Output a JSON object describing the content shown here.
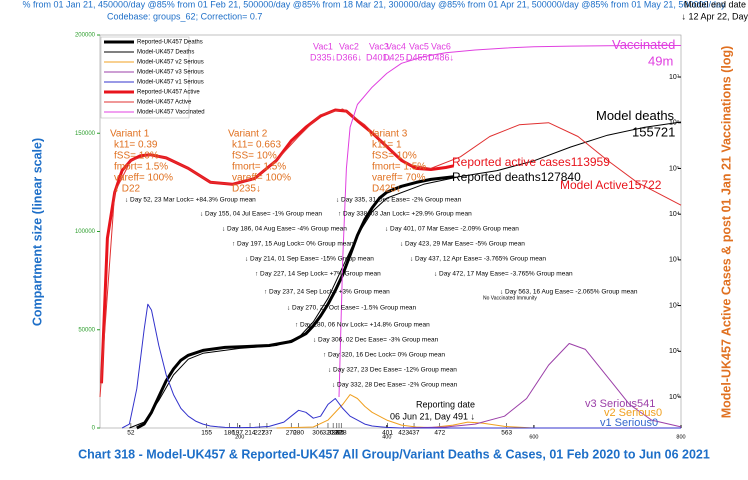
{
  "chart_data": {
    "type": "line",
    "subtitle": "% from 01 Jan 21, 450000/day @85% from 01 Feb 21, 500000/day @85% from 18 Mar 21, 300000/day @85% from 01 Apr 21, 500000/day @85% from 01 May 21, 500000/day",
    "codebase": "Codebase: groups_62; Correction= 0.7",
    "end_date": [
      "Model end date",
      "↓ 12 Apr 22, Day"
    ],
    "title": "Chart 318 - Model-UK457 & Reported-UK457 All Group/Variant Deaths & Cases, 01 Feb 2020 to Jun 06 2021",
    "ylabel": "Compartment size (linear scale)",
    "y2label": "Model-UK457 Active Cases & post 01 Jan 21 Vaccinations (log)",
    "xlim": [
      10,
      800
    ],
    "xticks": [
      200,
      400,
      600,
      800
    ],
    "ylim": [
      0,
      200000
    ],
    "yticks": [
      0,
      50000,
      100000,
      150000,
      200000
    ],
    "y2lim": [
      0.21,
      83000000
    ],
    "y2scale": "log",
    "y2ticks": [
      {
        "value": 1,
        "label": "10⁰"
      },
      {
        "value": 10,
        "label": "10¹"
      },
      {
        "value": 100,
        "label": "10²"
      },
      {
        "value": 1000,
        "label": "10³"
      },
      {
        "value": 10000,
        "label": "10⁴"
      },
      {
        "value": 100000,
        "label": "10⁵"
      },
      {
        "value": 1000000,
        "label": "10⁶"
      },
      {
        "value": 10000000,
        "label": "10⁷"
      }
    ],
    "legend": "upper left",
    "event_days": [
      52,
      155,
      186,
      197,
      214,
      227,
      237,
      270,
      280,
      306,
      320,
      327,
      332,
      335,
      338,
      401,
      423,
      437,
      472,
      563
    ],
    "series": [
      {
        "name": "Reported-UK457 Deaths",
        "color": "#000000",
        "line_width": 3,
        "axis": "y",
        "end_label": "Reported deaths",
        "x": [
          60,
          70,
          80,
          90,
          100,
          110,
          120,
          130,
          150,
          180,
          210,
          240,
          270,
          290,
          300,
          310,
          320,
          330,
          340,
          350,
          360,
          370,
          380,
          390,
          400,
          420,
          440,
          460,
          491
        ],
        "values": [
          0,
          2000,
          8000,
          16000,
          24000,
          30000,
          34500,
          37000,
          39500,
          41000,
          41500,
          42000,
          44000,
          48000,
          52000,
          57000,
          63000,
          70000,
          78000,
          88000,
          98000,
          106000,
          112000,
          117000,
          120000,
          123000,
          125000,
          126500,
          127840
        ]
      },
      {
        "name": "Model-UK457 Deaths",
        "color": "#000000",
        "line_width": 1,
        "axis": "y",
        "end_label": "Model deaths",
        "x": [
          50,
          70,
          90,
          110,
          130,
          150,
          200,
          250,
          280,
          300,
          320,
          340,
          360,
          380,
          400,
          450,
          500,
          550,
          600,
          650,
          700,
          750,
          800
        ],
        "values": [
          0,
          3000,
          14000,
          27000,
          35000,
          38000,
          40500,
          42000,
          46000,
          54000,
          66000,
          82000,
          98000,
          110000,
          117000,
          124000,
          128000,
          131000,
          136000,
          143000,
          149000,
          153000,
          155721
        ]
      },
      {
        "name": "Model-UK457 v2 Serious",
        "color": "#f0a020",
        "line_width": 1,
        "axis": "y",
        "end_label": "v2 Serious",
        "x": [
          250,
          300,
          320,
          340,
          350,
          360,
          370,
          380,
          400,
          420,
          440,
          460,
          490,
          510,
          530,
          560,
          600,
          700,
          800
        ],
        "values": [
          0,
          500,
          4000,
          12000,
          17000,
          15000,
          11000,
          8000,
          4000,
          1500,
          500,
          200,
          1500,
          3000,
          2500,
          800,
          0,
          0,
          0
        ]
      },
      {
        "name": "Model-UK457 v3 Serious",
        "color": "#9b3fa8",
        "line_width": 1,
        "axis": "y",
        "end_label": "v3 Serious",
        "x": [
          420,
          480,
          520,
          560,
          590,
          620,
          648,
          670,
          700,
          730,
          760,
          800
        ],
        "values": [
          0,
          500,
          2000,
          6000,
          15000,
          32000,
          43000,
          40000,
          26000,
          12000,
          4000,
          541
        ]
      },
      {
        "name": "Model-UK457 v1 Serious",
        "color": "#3333cc",
        "line_width": 1,
        "axis": "y",
        "end_label": "v1 Serious",
        "x": [
          40,
          50,
          60,
          70,
          75,
          80,
          90,
          100,
          110,
          120,
          130,
          140,
          150,
          160,
          170,
          180,
          200,
          220,
          240,
          260,
          270,
          280,
          290,
          300,
          310,
          320,
          330,
          340,
          350,
          360,
          370,
          380,
          400,
          420,
          800
        ],
        "values": [
          0,
          2000,
          20000,
          50000,
          63000,
          60000,
          42000,
          27000,
          17000,
          10000,
          6000,
          3500,
          2000,
          1000,
          600,
          300,
          200,
          300,
          800,
          3000,
          6000,
          9000,
          8000,
          5000,
          6000,
          12000,
          15000,
          10000,
          6000,
          4000,
          2000,
          1000,
          300,
          0,
          0
        ]
      },
      {
        "name": "Reported-UK457 Active",
        "color": "#e8141c",
        "line_width": 3,
        "axis": "y2",
        "end_label": "Reported active cases",
        "x": [
          12,
          20,
          30,
          40,
          52,
          65,
          78,
          100,
          130,
          160,
          190,
          220,
          250,
          270,
          290,
          310,
          330,
          345,
          360,
          380,
          400,
          420,
          440,
          460,
          480,
          491
        ],
        "values": [
          2,
          3000,
          30000,
          90000,
          150000,
          190000,
          200000,
          170000,
          100000,
          50000,
          45000,
          60000,
          150000,
          400000,
          800000,
          1400000,
          1900000,
          1800000,
          1100000,
          600000,
          300000,
          150000,
          100000,
          95000,
          105000,
          113959
        ]
      },
      {
        "name": "Model-UK457 Active",
        "color": "#e03030",
        "line_width": 1,
        "axis": "y2",
        "end_label": "Model Active",
        "x": [
          10,
          30,
          52,
          78,
          100,
          130,
          160,
          190,
          220,
          250,
          280,
          310,
          340,
          370,
          400,
          430,
          460,
          500,
          540,
          580,
          620,
          660,
          700,
          740,
          800
        ],
        "values": [
          1,
          30000,
          150000,
          200000,
          170000,
          100000,
          50000,
          45000,
          60000,
          150000,
          500000,
          1500000,
          2000000,
          900000,
          300000,
          120000,
          100000,
          180000,
          500000,
          900000,
          1000000,
          500000,
          150000,
          50000,
          15722
        ]
      },
      {
        "name": "Model-UK457 Vaccinated",
        "color": "#e040e0",
        "line_width": 1,
        "axis": "y2",
        "end_label": "Vaccinated",
        "x": [
          335,
          340,
          345,
          350,
          360,
          380,
          400,
          420,
          450,
          480,
          520,
          560,
          600,
          650,
          700,
          750,
          800
        ],
        "values": [
          1,
          1000,
          100000,
          800000,
          2500000,
          6000000,
          12000000,
          20000000,
          28000000,
          34000000,
          39000000,
          43000000,
          46000000,
          47500000,
          48500000,
          49000000,
          49000000
        ],
        "value_labels": [
          null,
          null,
          null,
          null,
          null,
          null,
          null,
          null,
          null,
          null,
          null,
          null,
          null,
          null,
          null,
          null,
          "49m"
        ]
      }
    ],
    "annotations": [
      "↓ Day 52, 23 Mar Lock= +84.3% Group mean",
      "↓ Day 155, 04 Jul Ease= -1% Group mean",
      "↓ Day 186, 04 Aug Ease= -4% Group mean",
      "↑ Day 197, 15 Aug Lock= 0% Group mean",
      "↓ Day 214, 01 Sep Ease= -15% Group mean",
      "↑ Day 227, 14 Sep Lock= +7% Group mean",
      "↑ Day 237, 24 Sep Lock= +3% Group mean",
      "↓ Day 270, 27 Oct Ease= -1.5% Group mean",
      "↑ Day 280, 06 Nov Lock= +14.8% Group mean",
      "↓ Day 306, 02 Dec Ease= -3% Group mean",
      "↑ Day 320, 16 Dec Lock= 0% Group mean",
      "↓ Day 327, 23 Dec Ease= -12% Group mean",
      "↓ Day 332, 28 Dec Ease= -2% Group mean",
      "↓ Day 335, 31 Dec Ease= -2% Group mean",
      "↑ Day 338, 03 Jan Lock= +29.9% Group mean",
      "↓ Day 401, 07 Mar Ease= -2.09% Group mean",
      "↓ Day 423, 29 Mar Ease= -5% Group mean",
      "↓ Day 437, 12 Apr Ease= -3.765% Group mean",
      "↓ Day 472, 17 May Ease= -3.765% Group mean",
      "↓ Day 563, 16 Aug Ease= -2.065% Group mean",
      "No Vaccinated Immunity"
    ],
    "variants": [
      [
        "Variant 1",
        "k11= 0.39",
        "fSS= 10%",
        "fmort= 1.5%",
        "vareff= 100%",
        "↓ D22"
      ],
      [
        "Variant 2",
        "k11= 0.663",
        "fSS= 10%",
        "fmort= 1.5%",
        "vareff= 100%",
        "D235↓"
      ],
      [
        "Variant 3",
        "k11= 1",
        "fSS= 10%",
        "fmort= 1.5%",
        "vareff= 70%",
        "D425↓"
      ]
    ],
    "vaccinations": [
      [
        "Vac1",
        "D335↓"
      ],
      [
        "Vac2",
        "D366↓"
      ],
      [
        "Vac3",
        "D401↓"
      ],
      [
        "Vac4",
        "D425↓"
      ],
      [
        "Vac5",
        "D455↓"
      ],
      [
        "Vac6",
        "D486↓"
      ]
    ],
    "reporting": [
      "Reporting date",
      "06 Jun 21, Day 491 ↓"
    ]
  }
}
